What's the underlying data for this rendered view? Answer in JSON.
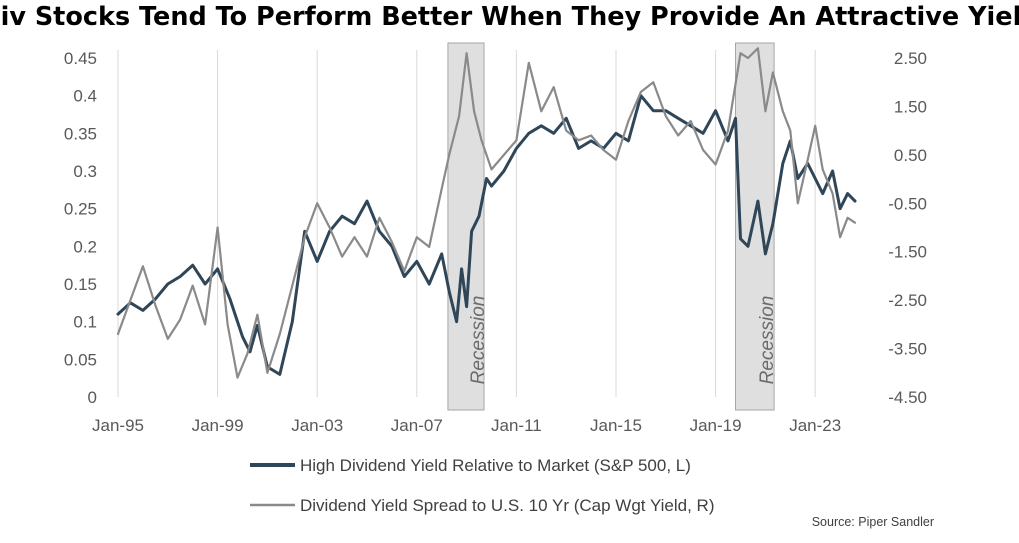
{
  "chart_data": {
    "type": "line",
    "title": "Div Stocks Tend To Perform Better When They Provide An Attractive Yield",
    "source": "Source: Piper Sandler",
    "x_tick_labels": [
      "Jan-95",
      "Jan-99",
      "Jan-03",
      "Jan-07",
      "Jan-11",
      "Jan-15",
      "Jan-19",
      "Jan-23"
    ],
    "x_range": [
      1995.0,
      2024.8
    ],
    "y_left": {
      "ylim": [
        0,
        0.45
      ],
      "tick_labels": [
        "0",
        "0.05",
        "0.1",
        "0.15",
        "0.2",
        "0.25",
        "0.3",
        "0.35",
        "0.4",
        "0.45"
      ]
    },
    "y_right": {
      "ylim": [
        -4.5,
        2.5
      ],
      "tick_labels": [
        "-4.50",
        "-3.50",
        "-2.50",
        "-1.50",
        "-0.50",
        "0.50",
        "1.50",
        "2.50"
      ]
    },
    "grid": "vertical",
    "legend_position": "bottom",
    "shaded_regions": [
      {
        "label": "Recession",
        "start": 2008.25,
        "end": 2009.7
      },
      {
        "label": "Recession",
        "start": 2019.8,
        "end": 2021.35
      }
    ],
    "series": [
      {
        "name": "High Dividend Yield Relative to Market (S&P 500, L)",
        "axis": "left",
        "color": "#2f4659",
        "x": [
          1995.0,
          1995.5,
          1996.0,
          1996.5,
          1997.0,
          1997.5,
          1998.0,
          1998.5,
          1999.0,
          1999.5,
          2000.0,
          2000.3,
          2000.6,
          2001.0,
          2001.5,
          2002.0,
          2002.5,
          2003.0,
          2003.5,
          2004.0,
          2004.5,
          2005.0,
          2005.5,
          2006.0,
          2006.5,
          2007.0,
          2007.5,
          2008.0,
          2008.3,
          2008.6,
          2008.8,
          2009.0,
          2009.2,
          2009.5,
          2009.8,
          2010.0,
          2010.5,
          2011.0,
          2011.5,
          2012.0,
          2012.5,
          2013.0,
          2013.5,
          2014.0,
          2014.5,
          2015.0,
          2015.5,
          2016.0,
          2016.5,
          2017.0,
          2017.5,
          2018.0,
          2018.5,
          2019.0,
          2019.5,
          2019.8,
          2020.0,
          2020.3,
          2020.7,
          2021.0,
          2021.3,
          2021.7,
          2022.0,
          2022.3,
          2022.7,
          2023.0,
          2023.3,
          2023.7,
          2024.0,
          2024.3,
          2024.6
        ],
        "values": [
          0.11,
          0.125,
          0.115,
          0.13,
          0.15,
          0.16,
          0.175,
          0.15,
          0.17,
          0.13,
          0.08,
          0.06,
          0.095,
          0.04,
          0.03,
          0.1,
          0.22,
          0.18,
          0.22,
          0.24,
          0.23,
          0.26,
          0.22,
          0.2,
          0.16,
          0.18,
          0.15,
          0.19,
          0.14,
          0.1,
          0.17,
          0.12,
          0.22,
          0.24,
          0.29,
          0.28,
          0.3,
          0.33,
          0.35,
          0.36,
          0.35,
          0.37,
          0.33,
          0.34,
          0.33,
          0.35,
          0.34,
          0.4,
          0.38,
          0.38,
          0.37,
          0.36,
          0.35,
          0.38,
          0.34,
          0.37,
          0.21,
          0.2,
          0.26,
          0.19,
          0.23,
          0.31,
          0.34,
          0.29,
          0.31,
          0.29,
          0.27,
          0.3,
          0.25,
          0.27,
          0.26
        ]
      },
      {
        "name": "Dividend Yield Spread to U.S. 10 Yr (Cap Wgt Yield, R)",
        "axis": "right",
        "color": "#8a8a8a",
        "x": [
          1995.0,
          1995.5,
          1996.0,
          1996.5,
          1997.0,
          1997.5,
          1998.0,
          1998.5,
          1999.0,
          1999.4,
          1999.8,
          2000.2,
          2000.6,
          2001.0,
          2001.5,
          2002.0,
          2002.5,
          2003.0,
          2003.5,
          2004.0,
          2004.5,
          2005.0,
          2005.5,
          2006.0,
          2006.5,
          2007.0,
          2007.5,
          2008.0,
          2008.3,
          2008.7,
          2009.0,
          2009.3,
          2009.6,
          2010.0,
          2010.5,
          2011.0,
          2011.5,
          2012.0,
          2012.5,
          2013.0,
          2013.5,
          2014.0,
          2014.5,
          2015.0,
          2015.5,
          2016.0,
          2016.5,
          2017.0,
          2017.5,
          2018.0,
          2018.5,
          2019.0,
          2019.5,
          2020.0,
          2020.3,
          2020.7,
          2021.0,
          2021.3,
          2021.7,
          2022.0,
          2022.3,
          2022.7,
          2023.0,
          2023.3,
          2023.7,
          2024.0,
          2024.3,
          2024.6
        ],
        "values": [
          -3.2,
          -2.5,
          -1.8,
          -2.6,
          -3.3,
          -2.9,
          -2.2,
          -3.0,
          -1.0,
          -3.0,
          -4.1,
          -3.6,
          -2.8,
          -4.0,
          -3.2,
          -2.2,
          -1.2,
          -0.5,
          -1.0,
          -1.6,
          -1.2,
          -1.6,
          -0.8,
          -1.3,
          -1.9,
          -1.2,
          -1.4,
          -0.2,
          0.5,
          1.3,
          2.6,
          1.4,
          0.8,
          0.2,
          0.5,
          0.8,
          2.4,
          1.4,
          1.9,
          1.0,
          0.8,
          0.9,
          0.6,
          0.4,
          1.2,
          1.8,
          2.0,
          1.3,
          0.9,
          1.2,
          0.6,
          0.3,
          1.0,
          2.6,
          2.5,
          2.7,
          1.4,
          2.2,
          1.4,
          1.0,
          -0.5,
          0.4,
          1.1,
          0.2,
          -0.3,
          -1.2,
          -0.8,
          -0.9
        ]
      }
    ]
  }
}
